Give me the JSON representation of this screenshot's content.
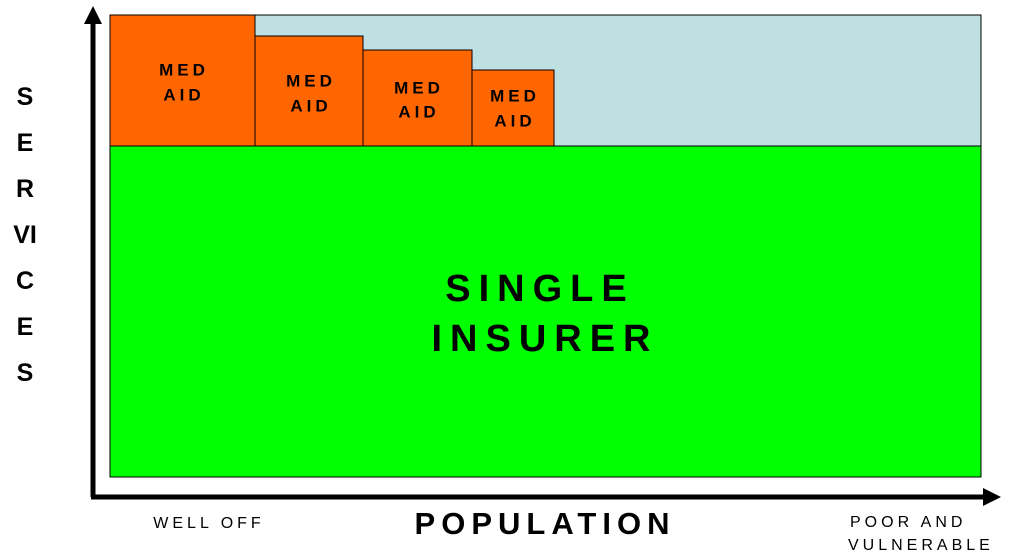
{
  "y_axis": {
    "label": "SERVICES"
  },
  "x_axis": {
    "label": "POPULATION",
    "left_label": "WELL OFF",
    "right_label": [
      "POOR AND",
      "VULNERABLE"
    ]
  },
  "boxes": [
    {
      "lines": [
        "MED",
        "AID"
      ]
    },
    {
      "lines": [
        "MED",
        "AID"
      ]
    },
    {
      "lines": [
        "MED",
        "AID"
      ]
    },
    {
      "lines": [
        "MED",
        "AID"
      ]
    }
  ],
  "main_block": {
    "lines": [
      "SINGLE",
      "INSURER"
    ]
  }
}
